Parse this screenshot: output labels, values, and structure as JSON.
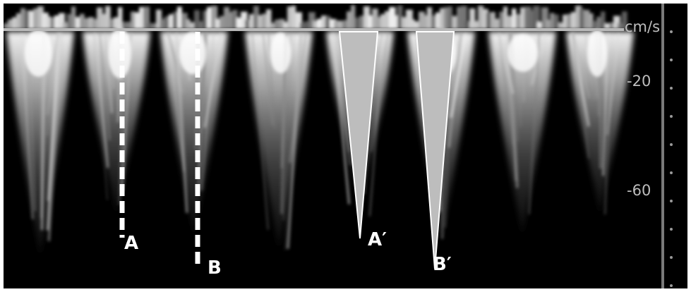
{
  "scale": {
    "unit": "cm/s",
    "tick_labels": [
      "-20",
      "-60"
    ]
  },
  "markers": {
    "dashed": [
      {
        "label": "A"
      },
      {
        "label": "B"
      }
    ],
    "triangles": [
      {
        "label": "A′"
      },
      {
        "label": "B′"
      }
    ]
  },
  "colors": {
    "background": "#000000",
    "baseline": "#b8b8b8",
    "marker": "#ffffff",
    "triangle_fill": "#bdbdbd",
    "scale_text": "#bdbdbd"
  }
}
